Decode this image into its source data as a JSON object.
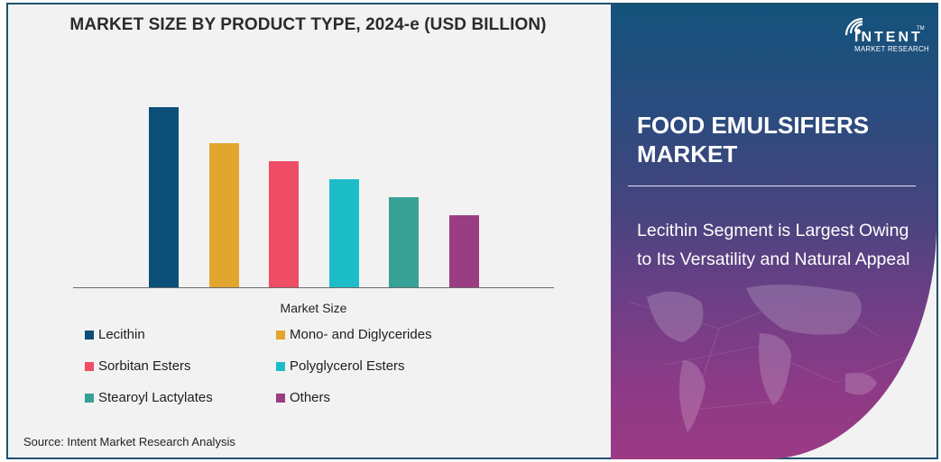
{
  "chart_data": {
    "type": "bar",
    "title": "MARKET SIZE BY PRODUCT TYPE, 2024-e (USD BILLION)",
    "xlabel": "Market Size",
    "ylabel": "",
    "categories": [
      "Lecithin",
      "Mono- and Diglycerides",
      "Sorbitan Esters",
      "Polyglycerol Esters",
      "Stearoyl Lactylates",
      "Others"
    ],
    "values": [
      200,
      160,
      140,
      120,
      100,
      80
    ],
    "value_note": "Relative bar heights in pixels; no y-axis values shown",
    "colors": [
      "#0c5079",
      "#e2a52e",
      "#ef4c65",
      "#1dbdc8",
      "#38a195",
      "#9b3d82"
    ],
    "grid": false,
    "legend_position": "bottom"
  },
  "chart": {
    "title": "MARKET SIZE BY PRODUCT TYPE, 2024-e (USD BILLION)",
    "xlabel": "Market Size",
    "legend": [
      {
        "label": "Lecithin",
        "color": "#0c5079"
      },
      {
        "label": "Mono- and Diglycerides",
        "color": "#e2a52e"
      },
      {
        "label": "Sorbitan Esters",
        "color": "#ef4c65"
      },
      {
        "label": "Polyglycerol Esters",
        "color": "#1dbdc8"
      },
      {
        "label": "Stearoyl Lactylates",
        "color": "#38a195"
      },
      {
        "label": "Others",
        "color": "#9b3d82"
      }
    ],
    "source": "Source: Intent Market Research Analysis"
  },
  "panel": {
    "logo_text": "INTENT",
    "logo_sub": "MARKET RESEARCH",
    "logo_tm": "TM",
    "title": "FOOD EMULSIFIERS MARKET",
    "highlight": "Lecithin Segment is Largest Owing to Its Versatility and Natural Appeal"
  }
}
